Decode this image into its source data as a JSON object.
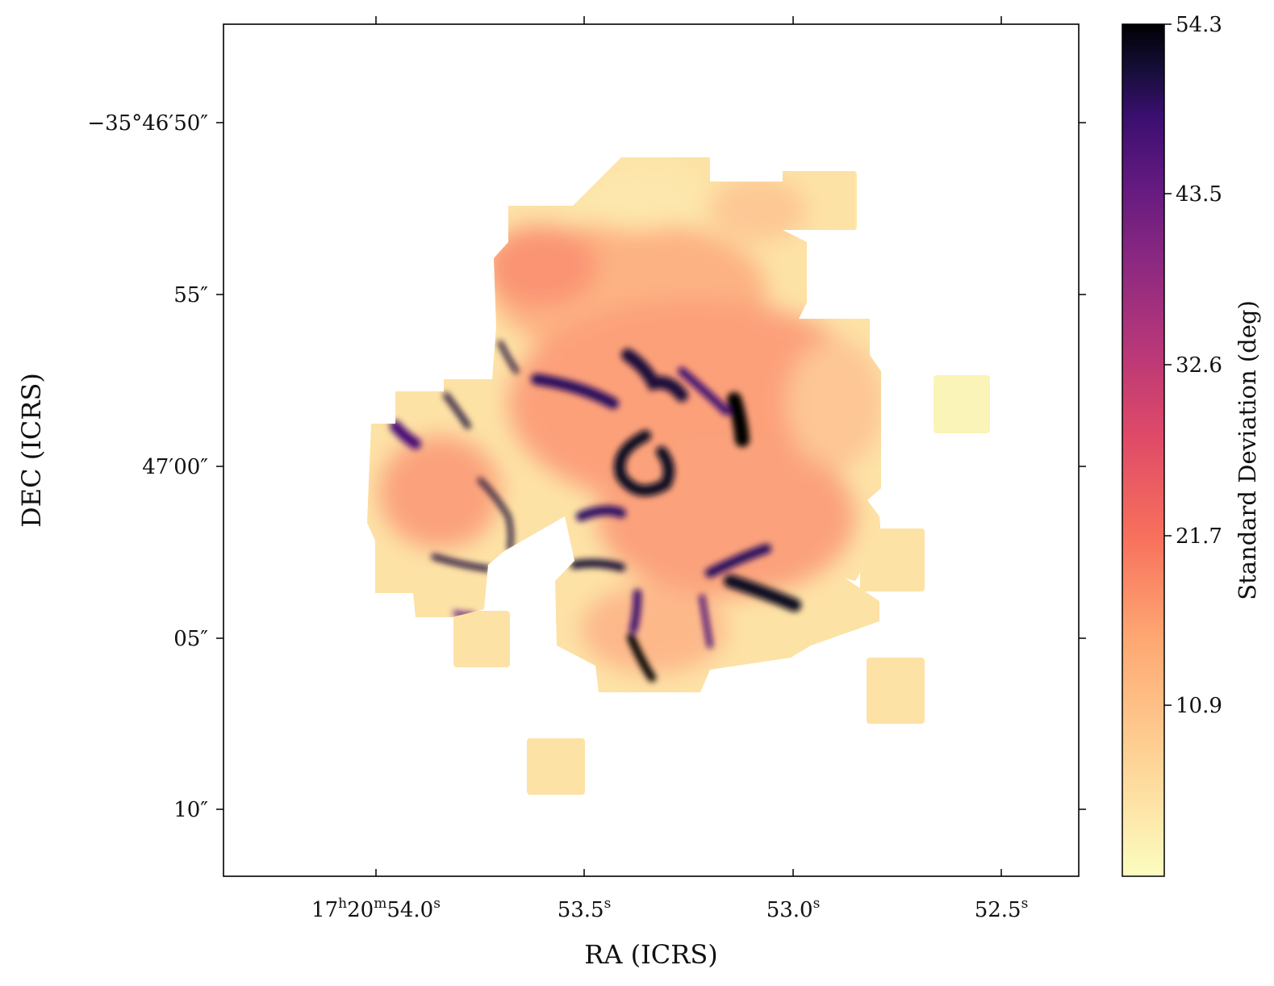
{
  "chart_data": {
    "type": "heatmap",
    "title": "",
    "xlabel": "RA (ICRS)",
    "ylabel": "DEC (ICRS)",
    "x_ticks": [
      {
        "h": "17",
        "m": "20",
        "s": "54.0",
        "value_sec": 54.0
      },
      {
        "s": "53.5",
        "value_sec": 53.5
      },
      {
        "s": "53.0",
        "value_sec": 53.0
      },
      {
        "s": "52.5",
        "value_sec": 52.5
      }
    ],
    "y_ticks": [
      {
        "label": "−35°46′50″",
        "value_arcsec": -50
      },
      {
        "label": "55″",
        "value_arcsec": -55
      },
      {
        "label": "47′00″",
        "value_arcsec": -60
      },
      {
        "label": "05″",
        "value_arcsec": -65
      },
      {
        "label": "10″",
        "value_arcsec": -70
      }
    ],
    "colorbar": {
      "label": "Standard Deviation (deg)",
      "colormap": "magma_r",
      "min": 0,
      "max": 54.3,
      "tick_labels": [
        "54.3",
        "43.5",
        "32.6",
        "21.7",
        "10.9"
      ],
      "tick_values": [
        54.3,
        43.5,
        32.6,
        21.7,
        10.9
      ]
    },
    "grid": false
  }
}
